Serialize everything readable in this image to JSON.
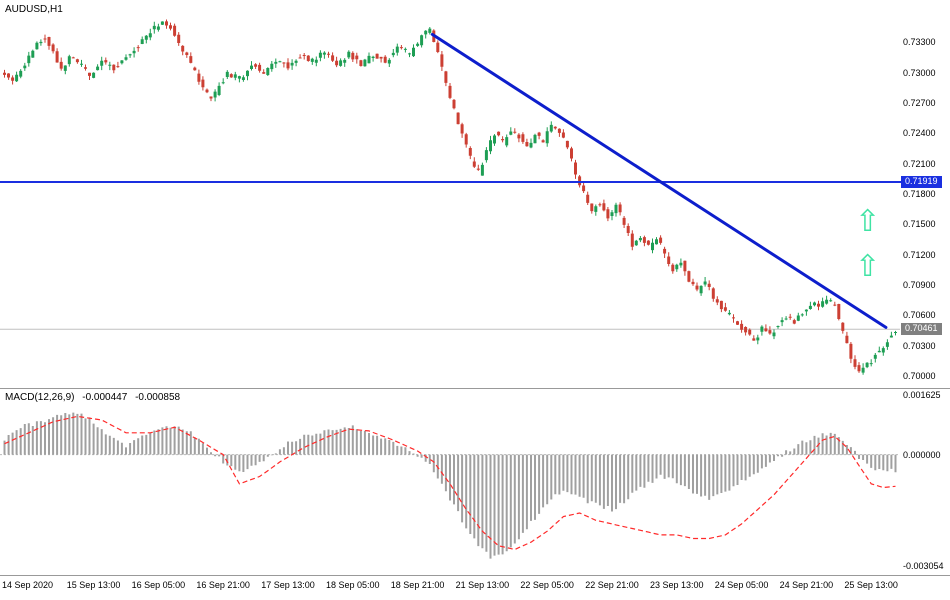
{
  "window": {
    "background": "#ffffff"
  },
  "chart_data": [
    {
      "type": "candlestick",
      "title": "AUDUSD,H1",
      "num_bars": 221,
      "x_axis": {
        "labels": [
          "14 Sep 2020",
          "15 Sep 13:00",
          "16 Sep 05:00",
          "16 Sep 21:00",
          "17 Sep 13:00",
          "18 Sep 05:00",
          "18 Sep 21:00",
          "21 Sep 13:00",
          "22 Sep 05:00",
          "22 Sep 21:00",
          "23 Sep 13:00",
          "24 Sep 05:00",
          "24 Sep 21:00",
          "25 Sep 13:00"
        ],
        "bars_per_label": 16
      },
      "y_axis": {
        "ticks": [
          "0.73300",
          "0.73000",
          "0.72700",
          "0.72400",
          "0.72100",
          "0.71800",
          "0.71500",
          "0.71200",
          "0.70900",
          "0.70600",
          "0.70300",
          "0.70000"
        ],
        "min": 0.6988,
        "max": 0.7372
      },
      "colors": {
        "up": "#1e9e54",
        "down": "#cc3f33"
      },
      "price_path_anchors": [
        [
          0,
          0.73
        ],
        [
          3,
          0.7292
        ],
        [
          6,
          0.731
        ],
        [
          9,
          0.7328
        ],
        [
          11,
          0.7336
        ],
        [
          13,
          0.732
        ],
        [
          15,
          0.7302
        ],
        [
          17,
          0.7316
        ],
        [
          20,
          0.7306
        ],
        [
          22,
          0.7296
        ],
        [
          25,
          0.7312
        ],
        [
          28,
          0.7304
        ],
        [
          31,
          0.7316
        ],
        [
          34,
          0.7328
        ],
        [
          37,
          0.7342
        ],
        [
          40,
          0.7351
        ],
        [
          42,
          0.7344
        ],
        [
          45,
          0.7322
        ],
        [
          48,
          0.73
        ],
        [
          50,
          0.7284
        ],
        [
          52,
          0.7273
        ],
        [
          54,
          0.7288
        ],
        [
          56,
          0.7299
        ],
        [
          59,
          0.7294
        ],
        [
          62,
          0.7308
        ],
        [
          65,
          0.73
        ],
        [
          68,
          0.7312
        ],
        [
          71,
          0.7306
        ],
        [
          74,
          0.7318
        ],
        [
          77,
          0.7311
        ],
        [
          80,
          0.7321
        ],
        [
          83,
          0.7309
        ],
        [
          86,
          0.7319
        ],
        [
          89,
          0.7308
        ],
        [
          92,
          0.7319
        ],
        [
          95,
          0.7311
        ],
        [
          98,
          0.7326
        ],
        [
          101,
          0.7318
        ],
        [
          104,
          0.7336
        ],
        [
          106,
          0.7344
        ],
        [
          108,
          0.7318
        ],
        [
          110,
          0.7288
        ],
        [
          112,
          0.7262
        ],
        [
          114,
          0.7238
        ],
        [
          116,
          0.7214
        ],
        [
          118,
          0.7201
        ],
        [
          120,
          0.7224
        ],
        [
          122,
          0.724
        ],
        [
          124,
          0.723
        ],
        [
          126,
          0.7243
        ],
        [
          128,
          0.7237
        ],
        [
          130,
          0.7227
        ],
        [
          132,
          0.7239
        ],
        [
          134,
          0.7233
        ],
        [
          136,
          0.7249
        ],
        [
          138,
          0.7241
        ],
        [
          140,
          0.7224
        ],
        [
          142,
          0.7199
        ],
        [
          144,
          0.718
        ],
        [
          146,
          0.7164
        ],
        [
          148,
          0.7172
        ],
        [
          150,
          0.7157
        ],
        [
          152,
          0.7169
        ],
        [
          154,
          0.7149
        ],
        [
          156,
          0.7129
        ],
        [
          158,
          0.7139
        ],
        [
          160,
          0.7127
        ],
        [
          162,
          0.7137
        ],
        [
          164,
          0.7119
        ],
        [
          166,
          0.7104
        ],
        [
          168,
          0.7112
        ],
        [
          170,
          0.7094
        ],
        [
          172,
          0.7084
        ],
        [
          174,
          0.7092
        ],
        [
          176,
          0.7077
        ],
        [
          178,
          0.7067
        ],
        [
          180,
          0.7059
        ],
        [
          182,
          0.7051
        ],
        [
          184,
          0.7043
        ],
        [
          186,
          0.7035
        ],
        [
          188,
          0.7047
        ],
        [
          190,
          0.7041
        ],
        [
          192,
          0.7051
        ],
        [
          194,
          0.706
        ],
        [
          196,
          0.7054
        ],
        [
          198,
          0.7064
        ],
        [
          200,
          0.7072
        ],
        [
          202,
          0.7067
        ],
        [
          204,
          0.7077
        ],
        [
          206,
          0.7069
        ],
        [
          208,
          0.704
        ],
        [
          210,
          0.7018
        ],
        [
          212,
          0.7003
        ],
        [
          214,
          0.7011
        ],
        [
          216,
          0.7021
        ],
        [
          218,
          0.703
        ],
        [
          220,
          0.7041
        ],
        [
          221,
          0.7046
        ]
      ],
      "overlays": {
        "horizontal_line": {
          "price": 0.71919,
          "label": "0.71919",
          "color": "#1a2fe0"
        },
        "trendline": {
          "from": [
            106,
            0.7338
          ],
          "to": [
            218,
            0.7048
          ],
          "color": "#0d1ecc"
        },
        "last_price": {
          "price": 0.70461,
          "label": "0.70461",
          "line_color": "#c0c0c0",
          "badge_color": "#808080"
        },
        "arrow_glyph": "⇧",
        "arrow_color": "#3fe3a4",
        "arrows": [
          {
            "bar": 213.5,
            "price": 0.7152
          },
          {
            "bar": 213.5,
            "price": 0.7108
          }
        ]
      }
    },
    {
      "type": "bar",
      "title": "MACD(12,26,9)",
      "main_value_label": "-0.000447",
      "signal_value_label": "-0.000858",
      "y_axis": {
        "ticks": [
          "0.001625",
          "0.000000",
          "-0.003054"
        ],
        "min": -0.0033,
        "max": 0.0018
      },
      "colors": {
        "histogram": "#a0a0a0",
        "signal": "#ff2a2a",
        "zero_line": "#bbbbbb"
      },
      "histogram_anchors": [
        [
          0,
          0.0004
        ],
        [
          5,
          0.0008
        ],
        [
          10,
          0.0009
        ],
        [
          14,
          0.0011
        ],
        [
          18,
          0.00115
        ],
        [
          22,
          0.0009
        ],
        [
          26,
          0.0005
        ],
        [
          30,
          0.0002
        ],
        [
          34,
          0.0005
        ],
        [
          38,
          0.0007
        ],
        [
          42,
          0.0008
        ],
        [
          46,
          0.0006
        ],
        [
          50,
          0.0002
        ],
        [
          54,
          -0.0002
        ],
        [
          58,
          -0.0005
        ],
        [
          62,
          -0.0003
        ],
        [
          66,
          0.0
        ],
        [
          70,
          0.0003
        ],
        [
          74,
          0.0005
        ],
        [
          78,
          0.0006
        ],
        [
          82,
          0.0007
        ],
        [
          86,
          0.0008
        ],
        [
          90,
          0.0006
        ],
        [
          94,
          0.0004
        ],
        [
          98,
          0.0002
        ],
        [
          102,
          0.0
        ],
        [
          105,
          -0.0003
        ],
        [
          108,
          -0.0008
        ],
        [
          111,
          -0.0014
        ],
        [
          114,
          -0.002
        ],
        [
          117,
          -0.0025
        ],
        [
          120,
          -0.0028
        ],
        [
          123,
          -0.0027
        ],
        [
          126,
          -0.0024
        ],
        [
          129,
          -0.002
        ],
        [
          132,
          -0.0016
        ],
        [
          135,
          -0.0012
        ],
        [
          138,
          -0.001
        ],
        [
          141,
          -0.0011
        ],
        [
          144,
          -0.0013
        ],
        [
          147,
          -0.0014
        ],
        [
          150,
          -0.0015
        ],
        [
          153,
          -0.0013
        ],
        [
          156,
          -0.001
        ],
        [
          159,
          -0.0008
        ],
        [
          162,
          -0.0006
        ],
        [
          165,
          -0.0007
        ],
        [
          168,
          -0.0009
        ],
        [
          171,
          -0.0011
        ],
        [
          174,
          -0.0012
        ],
        [
          177,
          -0.0011
        ],
        [
          180,
          -0.0009
        ],
        [
          184,
          -0.0006
        ],
        [
          188,
          -0.0003
        ],
        [
          192,
          0.0
        ],
        [
          196,
          0.0003
        ],
        [
          200,
          0.0005
        ],
        [
          204,
          0.0006
        ],
        [
          208,
          0.0003
        ],
        [
          212,
          -0.0002
        ],
        [
          216,
          -0.00045
        ],
        [
          221,
          -0.000447
        ]
      ],
      "signal_anchors": [
        [
          0,
          0.0003
        ],
        [
          6,
          0.0006
        ],
        [
          12,
          0.0009
        ],
        [
          18,
          0.00105
        ],
        [
          24,
          0.00095
        ],
        [
          30,
          0.0006
        ],
        [
          36,
          0.0006
        ],
        [
          42,
          0.00075
        ],
        [
          48,
          0.0004
        ],
        [
          54,
          0.0
        ],
        [
          58,
          -0.0008
        ],
        [
          63,
          -0.0006
        ],
        [
          68,
          -0.0002
        ],
        [
          74,
          0.0002
        ],
        [
          80,
          0.0005
        ],
        [
          85,
          0.0007
        ],
        [
          90,
          0.00065
        ],
        [
          96,
          0.0004
        ],
        [
          102,
          0.0001
        ],
        [
          106,
          -0.0002
        ],
        [
          110,
          -0.0008
        ],
        [
          114,
          -0.0015
        ],
        [
          118,
          -0.0021
        ],
        [
          122,
          -0.0025
        ],
        [
          126,
          -0.0026
        ],
        [
          130,
          -0.0024
        ],
        [
          134,
          -0.0021
        ],
        [
          138,
          -0.0017
        ],
        [
          142,
          -0.0016
        ],
        [
          146,
          -0.0018
        ],
        [
          150,
          -0.0019
        ],
        [
          154,
          -0.002
        ],
        [
          158,
          -0.0021
        ],
        [
          162,
          -0.0022
        ],
        [
          166,
          -0.0022
        ],
        [
          170,
          -0.0023
        ],
        [
          174,
          -0.0023
        ],
        [
          178,
          -0.0022
        ],
        [
          182,
          -0.0019
        ],
        [
          186,
          -0.0015
        ],
        [
          190,
          -0.0011
        ],
        [
          194,
          -0.0006
        ],
        [
          198,
          -0.0001
        ],
        [
          202,
          0.0004
        ],
        [
          205,
          0.0005
        ],
        [
          208,
          0.0002
        ],
        [
          211,
          -0.0003
        ],
        [
          214,
          -0.0008
        ],
        [
          217,
          -0.0009
        ],
        [
          219,
          -0.00088
        ],
        [
          221,
          -0.000858
        ]
      ]
    }
  ]
}
